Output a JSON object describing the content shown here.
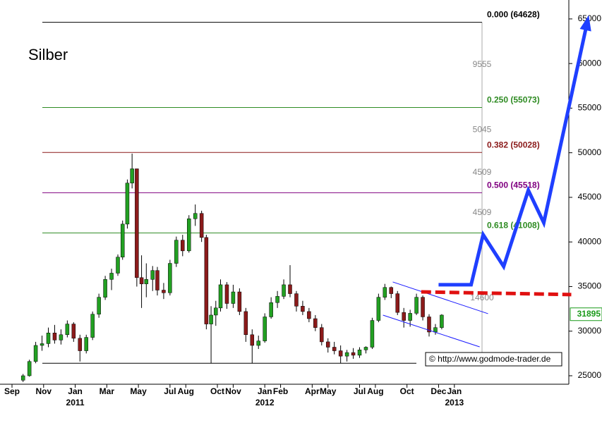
{
  "chart_data": {
    "type": "candlestick",
    "title": "Silber",
    "source": "© http://www.godmode-trader.de",
    "xlim": [
      -0.76,
      35.2
    ],
    "ylim": [
      24050,
      65700
    ],
    "yticks": [
      25000,
      30000,
      35000,
      40000,
      45000,
      50000,
      55000,
      60000,
      65000
    ],
    "xticks": [
      {
        "value": 0,
        "label": "Sep"
      },
      {
        "value": 2,
        "label": "Nov"
      },
      {
        "value": 4,
        "label": "Jan"
      },
      {
        "value": 6,
        "label": "Mar"
      },
      {
        "value": 8,
        "label": "May"
      },
      {
        "value": 10,
        "label": "Jul"
      },
      {
        "value": 11,
        "label": "Aug"
      },
      {
        "value": 13,
        "label": "Oct"
      },
      {
        "value": 14,
        "label": "Nov"
      },
      {
        "value": 16,
        "label": "Jan"
      },
      {
        "value": 17,
        "label": "Feb"
      },
      {
        "value": 19,
        "label": "Apr"
      },
      {
        "value": 20,
        "label": "May"
      },
      {
        "value": 22,
        "label": "Jul"
      },
      {
        "value": 23,
        "label": "Aug"
      },
      {
        "value": 25,
        "label": "Oct"
      },
      {
        "value": 27,
        "label": "Dec"
      },
      {
        "value": 28,
        "label": "Jan"
      }
    ],
    "year_labels": [
      {
        "value": 4,
        "label": "2011"
      },
      {
        "value": 16,
        "label": "2012"
      },
      {
        "value": 28,
        "label": "2013"
      }
    ],
    "up_color": "#22a022",
    "down_color": "#8b1a1a",
    "candles": {
      "x": [
        0.7,
        1.1,
        1.5,
        1.9,
        2.3,
        2.7,
        3.1,
        3.5,
        3.9,
        4.3,
        4.7,
        5.1,
        5.5,
        5.9,
        6.3,
        6.7,
        7.0,
        7.3,
        7.6,
        7.9,
        8.2,
        8.5,
        8.9,
        9.2,
        9.6,
        10.0,
        10.4,
        10.8,
        11.2,
        11.6,
        12.0,
        12.3,
        12.6,
        12.9,
        13.2,
        13.6,
        14.0,
        14.4,
        14.8,
        15.2,
        15.6,
        16.0,
        16.4,
        16.8,
        17.2,
        17.6,
        18.0,
        18.4,
        18.8,
        19.2,
        19.6,
        20.0,
        20.4,
        20.8,
        21.2,
        21.6,
        22.0,
        22.4,
        22.8,
        23.2,
        23.6,
        24.0,
        24.4,
        24.8,
        25.2,
        25.6,
        26.0,
        26.4,
        26.8,
        27.2
      ],
      "open": [
        24500,
        25000,
        26600,
        28400,
        28600,
        29800,
        29000,
        29600,
        30800,
        29200,
        27800,
        29300,
        31900,
        33800,
        35800,
        36500,
        38300,
        42000,
        46600,
        48200,
        36000,
        35300,
        35800,
        36800,
        34600,
        34300,
        37600,
        40200,
        39000,
        42600,
        43200,
        40500,
        30800,
        31800,
        32600,
        35200,
        33100,
        34400,
        32200,
        29600,
        28400,
        28900,
        31600,
        33200,
        33900,
        35200,
        34200,
        32800,
        32200,
        31400,
        30400,
        28800,
        28200,
        27800,
        27200,
        27600,
        27300,
        27900,
        28200,
        31200,
        33800,
        34900,
        34200,
        32100,
        31200,
        32000,
        33800,
        31600,
        29900,
        30400
      ],
      "high": [
        25200,
        26800,
        28800,
        29500,
        30400,
        30700,
        30200,
        31200,
        31000,
        29600,
        29600,
        32200,
        34200,
        36200,
        37000,
        38600,
        42400,
        47000,
        49900,
        48200,
        38500,
        37600,
        37300,
        37200,
        35400,
        38000,
        40600,
        40800,
        43000,
        44200,
        43500,
        40800,
        32800,
        33400,
        35800,
        35500,
        35200,
        34800,
        32600,
        30200,
        29500,
        32000,
        33800,
        34500,
        35800,
        37400,
        34500,
        33400,
        32600,
        31800,
        30800,
        29200,
        28800,
        28400,
        27900,
        28100,
        28200,
        28300,
        31500,
        34200,
        35300,
        35000,
        34500,
        32600,
        32400,
        34200,
        34000,
        31900,
        30800,
        31900
      ],
      "low": [
        24300,
        24900,
        26400,
        27800,
        28200,
        28600,
        28500,
        29300,
        28800,
        26600,
        27500,
        29000,
        31500,
        33500,
        34600,
        36200,
        38000,
        41500,
        46000,
        35000,
        32600,
        33800,
        34500,
        34000,
        33600,
        34000,
        37200,
        38400,
        38800,
        41800,
        40000,
        30200,
        26400,
        30600,
        32200,
        32500,
        32600,
        31800,
        28800,
        26400,
        28000,
        28700,
        31400,
        32600,
        33600,
        33800,
        32200,
        31800,
        31000,
        30000,
        28400,
        27600,
        27400,
        26400,
        26600,
        26900,
        27000,
        27500,
        28000,
        31000,
        33500,
        33700,
        31800,
        30400,
        30500,
        31800,
        31200,
        29400,
        29600,
        30200
      ],
      "close": [
        25000,
        26600,
        28400,
        28600,
        29800,
        29000,
        29600,
        30800,
        29200,
        27800,
        29300,
        31900,
        33800,
        35800,
        36500,
        38300,
        42000,
        46600,
        48200,
        36000,
        35300,
        35800,
        36800,
        34600,
        34300,
        37600,
        40200,
        39000,
        42600,
        43200,
        40500,
        30800,
        31800,
        32600,
        35200,
        33100,
        34400,
        32200,
        29600,
        28400,
        28900,
        31600,
        33200,
        33900,
        35200,
        34200,
        32800,
        32200,
        31400,
        30400,
        28800,
        28200,
        27800,
        27200,
        27600,
        27300,
        27900,
        28200,
        31200,
        33800,
        34900,
        34200,
        32100,
        31200,
        32000,
        33800,
        31600,
        29900,
        30400,
        31800
      ]
    },
    "fib_base": 26400,
    "fib_levels": [
      {
        "value": 64628,
        "label": "0.000 (64628)",
        "color": "#000000"
      },
      {
        "value": 55073,
        "label": "0.250 (55073)",
        "color": "#2e8b22"
      },
      {
        "value": 50028,
        "label": "0.382 (50028)",
        "color": "#8b1a1a"
      },
      {
        "value": 45518,
        "label": "0.500 (45518)",
        "color": "#800080"
      },
      {
        "value": 41008,
        "label": "0.618 (41008)",
        "color": "#2e8b22"
      }
    ],
    "fib_distances": [
      9555,
      5045,
      4509,
      4509,
      14600
    ],
    "channel": {
      "color": "#1a1aff",
      "upper": {
        "x": [
          24.1,
          30.13
        ],
        "values": [
          35514,
          31957
        ]
      },
      "lower": {
        "x": [
          23.48,
          29.6
        ],
        "values": [
          31798,
          28241
        ]
      }
    },
    "resistance": {
      "color": "#e01010",
      "x": [
        25.9,
        35.4
      ],
      "values": [
        34400,
        34100
      ]
    },
    "forecast": {
      "color": "#1f3fff",
      "x": [
        27.0,
        29.06,
        29.82,
        31.12,
        32.68,
        33.66,
        36.43
      ],
      "values": [
        35200,
        35200,
        40810,
        37250,
        45790,
        42150,
        64800
      ]
    },
    "current_price": 31895,
    "current_color": "#1a9a1a"
  }
}
